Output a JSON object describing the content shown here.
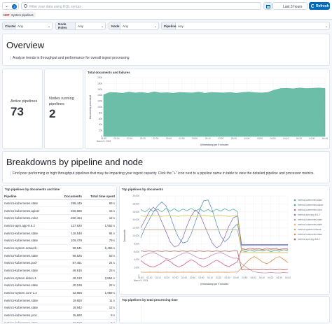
{
  "query_bar": {
    "search_placeholder": "Filter your data using KQL syntax",
    "time_range": "Last 3 hours",
    "refresh_label": "Refresh",
    "filter_pill": "System pipelines",
    "filter_not": "NOT",
    "filter_count": "3"
  },
  "controls": [
    {
      "label": "Cluster",
      "value": "Any"
    },
    {
      "label": "Node Roles",
      "value": "Any"
    },
    {
      "label": "Node",
      "value": "Any"
    },
    {
      "label": "Pipeline",
      "value": "Any"
    }
  ],
  "overview": {
    "title": "Overview",
    "subtitle": "Analyze trends in throughput and performance for overall ingest processing"
  },
  "metrics": {
    "active_pipelines_label": "Active pipelines",
    "active_pipelines_value": "73",
    "nodes_running_label": "Nodes running pipelines",
    "nodes_running_value": "2"
  },
  "total_docs_chart": {
    "title": "Total documents and failures",
    "ylabel": "Documents processed",
    "xlabel": "@timestamp per 5 minutes",
    "chart_data": {
      "type": "area",
      "title": "Total documents and failures",
      "ylabel": "Documents processed",
      "xlabel": "@timestamp per 5 minutes",
      "ylim": [
        0,
        200000
      ],
      "yticks": [
        "0",
        "20,000",
        "40,000",
        "60,000",
        "80,000",
        "100,000",
        "120,000",
        "140,000",
        "160,000",
        "180,000",
        "200,000"
      ],
      "yticks_short": [
        "0",
        "20k",
        "40k",
        "60k",
        "80k",
        "100k",
        "120k",
        "140k",
        "160k",
        "180k",
        "200k"
      ],
      "xticks": [
        "01:50",
        "02:00",
        "02:10",
        "02:20",
        "02:30",
        "02:40",
        "02:50",
        "03:00",
        "03:10",
        "03:20",
        "03:30",
        "03:40",
        "03:50",
        "04:00",
        "04:10",
        "04:20",
        "04:30",
        "04:40"
      ],
      "date_label": "March 9, 2023",
      "series": [
        {
          "name": "Documents",
          "color": "#54b399",
          "values": [
            142000,
            150000,
            149000,
            147000,
            151000,
            148000,
            150000,
            147000,
            152000,
            148000,
            149000,
            147000,
            150000,
            149000,
            148000,
            151000,
            147000,
            150000,
            149000,
            148000,
            150000,
            147000,
            150000,
            151000,
            149000,
            148000,
            150000,
            158000,
            163000,
            164000,
            162000,
            165000,
            163000,
            164000,
            165000,
            163000
          ]
        }
      ]
    }
  },
  "breakdowns": {
    "title": "Breakdowns by pipeline and node",
    "subtitle": "Find poor performing or high throughput pipelines that may be impacting your ingest capacity. Click the \"+\" icon next to a pipeline name in table to view the detailed pipeline and processor metrics."
  },
  "pipeline_table": {
    "title": "Top pipelines by documents and time",
    "columns": [
      "Pipeline",
      "Documents",
      "Total time spent"
    ],
    "rows": [
      [
        "metrics-kubernetes.state",
        "299,449",
        "69 s"
      ],
      [
        "metrics-kubernetes.apiser",
        "265,685",
        "15 s"
      ],
      [
        "metrics-kubernetes.volur",
        "260,464",
        "12 s"
      ],
      [
        "metrics-apm.app-8.6.2",
        "137,920",
        "1,552 s"
      ],
      [
        "metrics-kubernetes.state",
        "118,548",
        "84 s"
      ],
      [
        "metrics-kubernetes.state",
        "109,478",
        "79 s"
      ],
      [
        "metrics-system.network-",
        "98,541",
        "6,456 s"
      ],
      [
        "metrics-kubernetes.state",
        "98,525",
        "53 s"
      ],
      [
        "metrics-kubernetes.pod-",
        "87,451",
        "24 s"
      ],
      [
        "metrics-kubernetes.state",
        "48,916",
        "23 s"
      ],
      [
        "metrics-system.diskio-1",
        "45,120",
        "2,854 s"
      ],
      [
        "metrics-kubernetes.state",
        "40,128",
        "22 s"
      ],
      [
        "metrics-system.core-1.2",
        "32,856",
        "1,959 s"
      ],
      [
        "metrics-kubernetes.state",
        "19,650",
        "11 s"
      ],
      [
        "metrics-kubernetes.state",
        "18,942",
        "12 s"
      ],
      [
        "metrics-kubernetes.proc",
        "15,660",
        "8 s"
      ],
      [
        "metrics-kubernetes.state",
        "10,560",
        "6 s"
      ]
    ]
  },
  "pipelines_chart": {
    "title": "Top pipelines by documents",
    "ylabel": "Documents",
    "xlabel": "@timestamp per 5 minutes",
    "chart_data": {
      "type": "line",
      "title": "Top pipelines by documents",
      "ylabel": "Documents",
      "xlabel": "@timestamp per 5 minutes",
      "ylim": [
        0,
        20000
      ],
      "yticks": [
        "0",
        "2,000",
        "4,000",
        "6,000",
        "8,000",
        "10,000",
        "12,000",
        "14,000",
        "16,000",
        "18,000",
        "20,000"
      ],
      "xticks": [
        "01:50",
        "02:00",
        "02:10",
        "02:20",
        "02:30",
        "02:40",
        "02:50",
        "03:00",
        "03:10",
        "03:20",
        "03:30",
        "03:40",
        "03:50",
        "04:00",
        "04:10",
        "04:20",
        "04:30",
        "04:40"
      ],
      "date_label": "March 9, 2023",
      "series": [
        {
          "name": "metrics-kubernetes.state",
          "color": "#54b399",
          "values": [
            16600,
            16000,
            16800,
            16100,
            16700,
            16000,
            16900,
            16200,
            16800,
            16100,
            16700,
            16300,
            16900,
            16200,
            16800,
            16100,
            16600,
            16000,
            16700,
            16200,
            16800,
            16300,
            16700,
            16100,
            6300,
            6000,
            6500,
            6100,
            6400,
            6200,
            6500,
            6000,
            6400,
            6100,
            6500,
            6200
          ]
        },
        {
          "name": "metrics-kubernetes.apiser",
          "color": "#6092c0",
          "values": [
            9500,
            12000,
            14000,
            16000,
            17500,
            18500,
            17500,
            15000,
            12000,
            9500,
            8200,
            8500,
            10500,
            13500,
            16500,
            18800,
            19000,
            16500,
            13000,
            10000,
            8500,
            9500,
            12000,
            13000,
            7600,
            7600,
            7600,
            7600,
            7600,
            7600,
            7600,
            7600,
            7600,
            7600,
            7600,
            7600
          ]
        },
        {
          "name": "metrics-kubernetes.volur",
          "color": "#d36086",
          "values": [
            3800,
            3000,
            2400,
            2200,
            2600,
            3200,
            4000,
            3600,
            2700,
            2200,
            2600,
            3400,
            4000,
            3500,
            2600,
            2200,
            2600,
            3300,
            3900,
            3400,
            2600,
            2300,
            2900,
            3500,
            6800,
            6600,
            6900,
            6700,
            6800,
            6600,
            6900,
            6700,
            6800,
            6600,
            6800,
            6700
          ]
        },
        {
          "name": "metrics-apm.app-8.6.2",
          "color": "#9170b8",
          "values": [
            12000,
            14000,
            16000,
            17200,
            16000,
            13500,
            11000,
            8500,
            7200,
            7600,
            9500,
            12500,
            15000,
            16500,
            15500,
            13000,
            10500,
            8200,
            7000,
            7600,
            9800,
            12500,
            14500,
            15000,
            7800,
            7800,
            7800,
            7800,
            7800,
            7800,
            7800,
            7800,
            7800,
            7800,
            7800,
            7800
          ]
        },
        {
          "name": "metrics-kubernetes.state",
          "color": "#ca8eae",
          "values": [
            4600,
            5200,
            5600,
            5800,
            5400,
            4800,
            4300,
            4100,
            4500,
            5100,
            5600,
            5800,
            5400,
            4800,
            4300,
            4200,
            4600,
            5200,
            5600,
            5800,
            5400,
            4800,
            4400,
            4400,
            3000,
            2200,
            1500,
            1000,
            800,
            700,
            700,
            800,
            700,
            700,
            800,
            700
          ]
        },
        {
          "name": "metrics-kubernetes.state",
          "color": "#d6bf57",
          "values": [
            15000,
            14900,
            15000,
            15100,
            15000,
            14900,
            15000,
            15100,
            15000,
            14900,
            15000,
            15100,
            15000,
            14900,
            15000,
            15100,
            15000,
            14900,
            15000,
            15100,
            15000,
            14900,
            15000,
            15000,
            5800,
            5800,
            5800,
            5800,
            5800,
            5800,
            5800,
            5800,
            5800,
            5800,
            5800,
            5800
          ]
        },
        {
          "name": "metrics-system.network-",
          "color": "#b9a888",
          "values": [
            11500,
            11500,
            11500,
            11500,
            11500,
            11500,
            11500,
            11500,
            11500,
            11500,
            11500,
            11500,
            11500,
            11500,
            11500,
            11500,
            11500,
            11500,
            11500,
            11500,
            11500,
            11500,
            11500,
            11500,
            6500,
            6500,
            6500,
            6500,
            6500,
            6500,
            6500,
            6500,
            6500,
            6500,
            6500,
            6500
          ]
        },
        {
          "name": "metrics-kubernetes.state",
          "color": "#da8b45",
          "values": [
            900,
            850,
            900,
            880,
            900,
            860,
            900,
            880,
            900,
            860,
            900,
            880,
            900,
            860,
            900,
            880,
            900,
            860,
            900,
            880,
            900,
            860,
            900,
            900,
            2000,
            3200,
            4200,
            4800,
            4200,
            3400,
            3000,
            3600,
            4400,
            4800,
            4100,
            3300
          ]
        },
        {
          "name": "metrics-apm.app-8.6.2",
          "color": "#aa6556",
          "values": [
            6200,
            6100,
            6200,
            6100,
            6200,
            6100,
            6200,
            6100,
            6200,
            6100,
            6200,
            6100,
            6200,
            6100,
            6200,
            6100,
            6200,
            6100,
            6200,
            6100,
            6200,
            6100,
            6200,
            6200,
            1500,
            1600,
            1500,
            1600,
            1500,
            1600,
            1500,
            1600,
            1500,
            1600,
            1500,
            1600
          ]
        }
      ]
    }
  },
  "bottom_chart": {
    "title": "Top pipelines by total processing time"
  }
}
